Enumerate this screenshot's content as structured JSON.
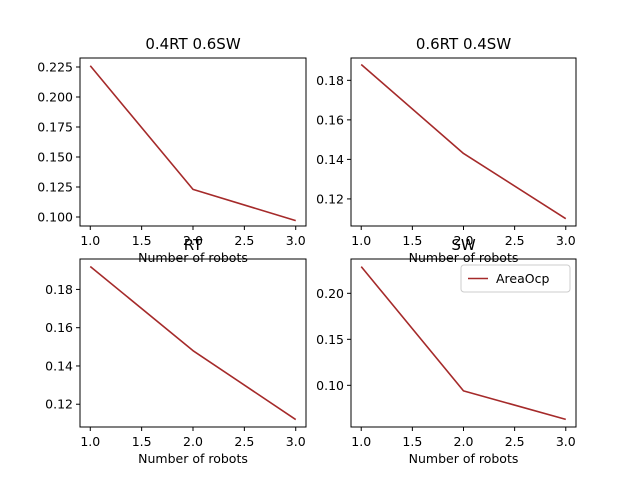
{
  "chart_data": [
    {
      "type": "line",
      "title": "0.4RT 0.6SW",
      "xlabel": "Number of robots",
      "ylabel": "",
      "x": [
        1,
        2,
        3
      ],
      "series": [
        {
          "name": "AreaOcp",
          "color": "#a52a2a",
          "values": [
            0.226,
            0.123,
            0.097
          ]
        }
      ],
      "xlim": [
        0.9,
        3.1
      ],
      "ylim": [
        0.0925,
        0.2325
      ],
      "xticks": [
        1.0,
        1.5,
        2.0,
        2.5,
        3.0
      ],
      "xtick_labels": [
        "1.0",
        "1.5",
        "2.0",
        "2.5",
        "3.0"
      ],
      "yticks": [
        0.1,
        0.125,
        0.15,
        0.175,
        0.2,
        0.225
      ],
      "ytick_labels": [
        "0.100",
        "0.125",
        "0.150",
        "0.175",
        "0.200",
        "0.225"
      ],
      "legend": null
    },
    {
      "type": "line",
      "title": "0.6RT 0.4SW",
      "xlabel": "Number of robots",
      "ylabel": "",
      "x": [
        1,
        2,
        3
      ],
      "series": [
        {
          "name": "AreaOcp",
          "color": "#a52a2a",
          "values": [
            0.188,
            0.143,
            0.11
          ]
        }
      ],
      "xlim": [
        0.9,
        3.1
      ],
      "ylim": [
        0.1063,
        0.1913
      ],
      "xticks": [
        1.0,
        1.5,
        2.0,
        2.5,
        3.0
      ],
      "xtick_labels": [
        "1.0",
        "1.5",
        "2.0",
        "2.5",
        "3.0"
      ],
      "yticks": [
        0.12,
        0.14,
        0.16,
        0.18
      ],
      "ytick_labels": [
        "0.12",
        "0.14",
        "0.16",
        "0.18"
      ],
      "legend": null
    },
    {
      "type": "line",
      "title": "RT",
      "xlabel": "Number of robots",
      "ylabel": "",
      "x": [
        1,
        2,
        3
      ],
      "series": [
        {
          "name": "AreaOcp",
          "color": "#a52a2a",
          "values": [
            0.192,
            0.148,
            0.112
          ]
        }
      ],
      "xlim": [
        0.9,
        3.1
      ],
      "ylim": [
        0.1081,
        0.1959
      ],
      "xticks": [
        1.0,
        1.5,
        2.0,
        2.5,
        3.0
      ],
      "xtick_labels": [
        "1.0",
        "1.5",
        "2.0",
        "2.5",
        "3.0"
      ],
      "yticks": [
        0.12,
        0.14,
        0.16,
        0.18
      ],
      "ytick_labels": [
        "0.12",
        "0.14",
        "0.16",
        "0.18"
      ],
      "legend": null
    },
    {
      "type": "line",
      "title": "SW",
      "xlabel": "Number of robots",
      "ylabel": "",
      "x": [
        1,
        2,
        3
      ],
      "series": [
        {
          "name": "AreaOcp",
          "color": "#a52a2a",
          "values": [
            0.229,
            0.094,
            0.063
          ]
        }
      ],
      "xlim": [
        0.9,
        3.1
      ],
      "ylim": [
        0.0547,
        0.2373
      ],
      "xticks": [
        1.0,
        1.5,
        2.0,
        2.5,
        3.0
      ],
      "xtick_labels": [
        "1.0",
        "1.5",
        "2.0",
        "2.5",
        "3.0"
      ],
      "yticks": [
        0.1,
        0.15,
        0.2
      ],
      "ytick_labels": [
        "0.10",
        "0.15",
        "0.20"
      ],
      "legend": {
        "placement": "upper right",
        "entries": [
          "AreaOcp"
        ]
      }
    }
  ]
}
